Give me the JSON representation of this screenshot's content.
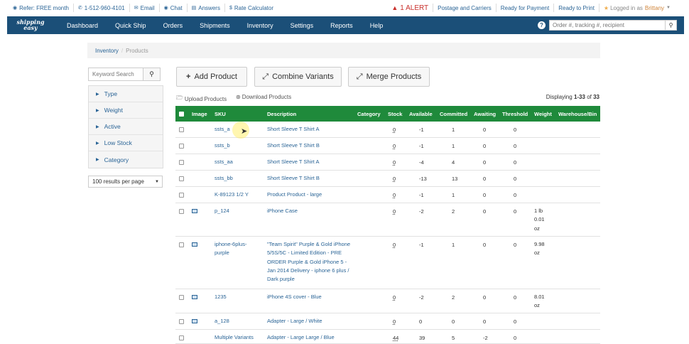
{
  "topbar": {
    "refer": "Refer: FREE month",
    "phone": "1-512-960-4101",
    "email": "Email",
    "chat": "Chat",
    "answers": "Answers",
    "rate_calc": "Rate Calculator",
    "alert": "1 ALERT",
    "postage": "Postage and Carriers",
    "ready_payment": "Ready for Payment",
    "ready_print": "Ready to Print",
    "logged_in": "Logged in as",
    "username": "Brittany"
  },
  "nav": {
    "logo": "shipping easy",
    "items": [
      "Dashboard",
      "Quick Ship",
      "Orders",
      "Shipments",
      "Inventory",
      "Settings",
      "Reports",
      "Help"
    ],
    "search_placeholder": "Order #, tracking #, recipient"
  },
  "breadcrumb": {
    "parent": "Inventory",
    "current": "Products"
  },
  "sidebar": {
    "keyword_placeholder": "Keyword Search",
    "filters": [
      "Type",
      "Weight",
      "Active",
      "Low Stock",
      "Category"
    ],
    "per_page": "100 results per page"
  },
  "actions": {
    "add": "Add Product",
    "combine": "Combine Variants",
    "merge": "Merge Products",
    "upload": "Upload Products",
    "download": "Download Products"
  },
  "displaying": {
    "prefix": "Displaying",
    "range": "1-33",
    "of": "of",
    "total": "33"
  },
  "table": {
    "headers": [
      "Image",
      "SKU",
      "Description",
      "Category",
      "Stock",
      "Available",
      "Committed",
      "Awaiting",
      "Threshold",
      "Weight",
      "Warehouse/Bin"
    ],
    "rows": [
      {
        "sku": "ssts_a",
        "desc": "Short Sleeve T Shirt A",
        "stock": "0",
        "available": "-1",
        "committed": "1",
        "awaiting": "0",
        "threshold": "0",
        "weight": ""
      },
      {
        "sku": "ssts_b",
        "desc": "Short Sleeve T Shirt B",
        "stock": "0",
        "available": "-1",
        "committed": "1",
        "awaiting": "0",
        "threshold": "0",
        "weight": ""
      },
      {
        "sku": "ssts_aa",
        "desc": "Short Sleeve T Shirt A",
        "stock": "0",
        "available": "-4",
        "committed": "4",
        "awaiting": "0",
        "threshold": "0",
        "weight": ""
      },
      {
        "sku": "ssts_bb",
        "desc": "Short Sleeve T Shirt B",
        "stock": "0",
        "available": "-13",
        "committed": "13",
        "awaiting": "0",
        "threshold": "0",
        "weight": ""
      },
      {
        "sku": "K-89123 1/2 Y",
        "desc": "Product Product - large",
        "stock": "0",
        "available": "-1",
        "committed": "1",
        "awaiting": "0",
        "threshold": "0",
        "weight": ""
      },
      {
        "sku": "p_124",
        "desc": "iPhone Case",
        "stock": "0",
        "available": "-2",
        "committed": "2",
        "awaiting": "0",
        "threshold": "0",
        "weight": "1 lb 0.01 oz"
      },
      {
        "sku": "iphone-6plus-purple",
        "desc": "\"Team Spirit\" Purple & Gold iPhone 5/5S/5C - Limited Edition - PRE ORDER Purple & Gold iPhone 5 - Jan 2014 Delivery - iphone 6 plus / Dark purple",
        "stock": "0",
        "available": "-1",
        "committed": "1",
        "awaiting": "0",
        "threshold": "0",
        "weight": "9.98 oz"
      },
      {
        "sku": "1235",
        "desc": "iPhone 4S cover - Blue",
        "stock": "0",
        "available": "-2",
        "committed": "2",
        "awaiting": "0",
        "threshold": "0",
        "weight": "8.01 oz"
      },
      {
        "sku": "a_128",
        "desc": "Adapter - Large / White",
        "stock": "0",
        "available": "0",
        "committed": "0",
        "awaiting": "0",
        "threshold": "0",
        "weight": ""
      },
      {
        "sku": "Multiple Variants",
        "desc": "Adapter - Large Large / Blue",
        "stock": "44",
        "available": "39",
        "committed": "5",
        "awaiting": "-2",
        "threshold": "0",
        "weight": ""
      }
    ]
  }
}
